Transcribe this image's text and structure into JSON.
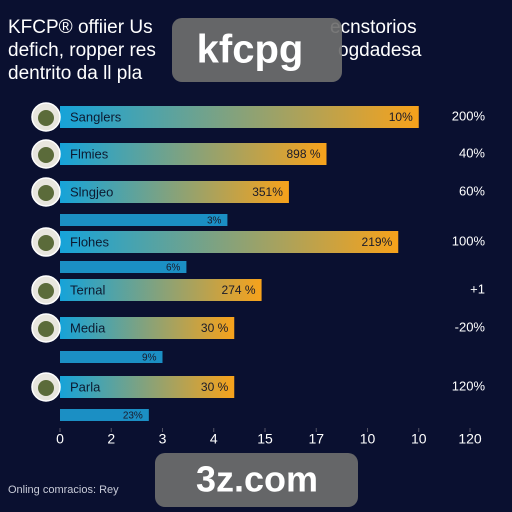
{
  "chart_data": {
    "type": "hbar",
    "title_lines": [
      "KFCP® offiier Us",
      "ecnstorios",
      "defich, ropper res",
      "ogdadesa",
      "dentrito da ll pla"
    ],
    "categories": [
      "Sanglers",
      "Flmies",
      "Slngjeo",
      null,
      "Flohes",
      null,
      "Ternal",
      "Media",
      null,
      "Parla",
      null
    ],
    "values": [
      105,
      78,
      67,
      49,
      99,
      37,
      59,
      51,
      30,
      51,
      26
    ],
    "value_labels": [
      "10%",
      "898 %",
      "351%",
      "3%",
      "219%",
      "6%",
      "274 %",
      "30 %",
      "9%",
      "30 %",
      "23%"
    ],
    "right_labels": [
      "200%",
      "40%",
      "60%",
      null,
      "100%",
      null,
      "+1",
      "-20%",
      null,
      "120%",
      null
    ],
    "colors": {
      "main_start": "#16a3d9",
      "main_end": "#f7a21b",
      "sub": "#1b8fc4"
    },
    "xlim": [
      0,
      120
    ],
    "xticks": [
      {
        "value": 0,
        "label": "0"
      },
      {
        "value": 15,
        "label": "2"
      },
      {
        "value": 30,
        "label": "3"
      },
      {
        "value": 45,
        "label": "4"
      },
      {
        "value": 60,
        "label": "15"
      },
      {
        "value": 75,
        "label": "17"
      },
      {
        "value": 90,
        "label": "10"
      },
      {
        "value": 105,
        "label": "10"
      },
      {
        "value": 120,
        "label": "120"
      }
    ],
    "footer": "Onling comracios: Rey",
    "watermarks": [
      "kfcpg",
      "3z.com"
    ]
  }
}
